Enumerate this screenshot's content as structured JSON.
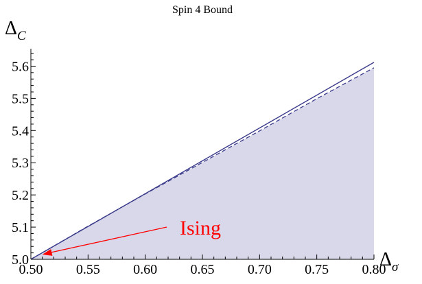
{
  "chart_data": {
    "type": "area",
    "title": "Spin 4 Bound",
    "ylabel": {
      "main": "Δ",
      "sub": "C"
    },
    "xlabel": {
      "main": "Δ",
      "sub": "σ"
    },
    "xlim": [
      0.5,
      0.8
    ],
    "ylim": [
      5.0,
      5.65
    ],
    "x_ticks": [
      "0.50",
      "0.55",
      "0.60",
      "0.65",
      "0.70",
      "0.75",
      "0.80"
    ],
    "y_ticks": [
      "5.0",
      "5.1",
      "5.2",
      "5.3",
      "5.4",
      "5.5",
      "5.6"
    ],
    "series": [
      {
        "style": "solid",
        "points": [
          [
            0.5,
            5.0
          ],
          [
            0.8,
            5.612
          ]
        ]
      },
      {
        "style": "dashed",
        "points": [
          [
            0.5,
            5.0
          ],
          [
            0.55,
            5.103
          ],
          [
            0.6,
            5.203
          ],
          [
            0.65,
            5.301
          ],
          [
            0.7,
            5.399
          ],
          [
            0.75,
            5.499
          ],
          [
            0.8,
            5.595
          ]
        ]
      }
    ],
    "annotation": {
      "text": "Ising",
      "point": [
        0.51,
        5.015
      ]
    },
    "colors": {
      "line": "#3b3b8c",
      "fill": "#d8d8ea",
      "annotation": "#ff0000",
      "axis": "#000000"
    }
  }
}
